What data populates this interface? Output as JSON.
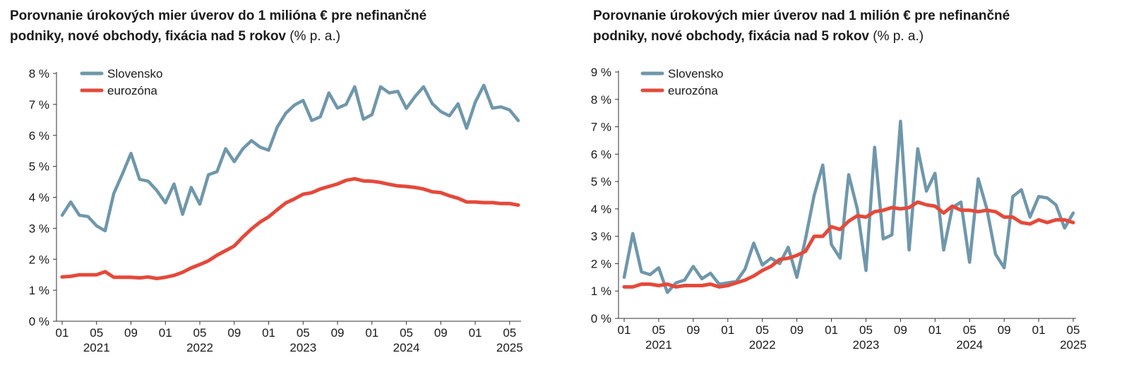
{
  "colors": {
    "slovensko": "#6f97ab",
    "eurozona": "#e5493a",
    "axis": "#333333"
  },
  "chart_data": [
    {
      "type": "line",
      "title": "Porovnanie úrokových mier úverov do 1 milióna € pre nefinančné podniky, nové obchody, fixácia nad 5 rokov",
      "title_line1": "Porovnanie úrokových mier úverov do 1 milióna € pre nefinančné",
      "title_line2": "podniky, nové obchody, fixácia nad 5 rokov",
      "unit": "(% p. a.)",
      "ylim": [
        0,
        8
      ],
      "y_ticks": [
        "0 %",
        "1 %",
        "2 %",
        "3 %",
        "4 %",
        "5 %",
        "6 %",
        "7 %",
        "8 %"
      ],
      "x_month_ticks": [
        {
          "i": 0,
          "label": "01"
        },
        {
          "i": 4,
          "label": "05"
        },
        {
          "i": 8,
          "label": "09"
        },
        {
          "i": 12,
          "label": "01"
        },
        {
          "i": 16,
          "label": "05"
        },
        {
          "i": 20,
          "label": "09"
        },
        {
          "i": 24,
          "label": "01"
        },
        {
          "i": 28,
          "label": "05"
        },
        {
          "i": 32,
          "label": "09"
        },
        {
          "i": 36,
          "label": "01"
        },
        {
          "i": 40,
          "label": "05"
        },
        {
          "i": 44,
          "label": "09"
        },
        {
          "i": 48,
          "label": "01"
        },
        {
          "i": 52,
          "label": "05"
        }
      ],
      "x_year_ticks": [
        {
          "i": 4,
          "label": "2021"
        },
        {
          "i": 16,
          "label": "2022"
        },
        {
          "i": 28,
          "label": "2023"
        },
        {
          "i": 40,
          "label": "2024"
        },
        {
          "i": 52,
          "label": "2025"
        }
      ],
      "n_points": 54,
      "legend": [
        "Slovensko",
        "eurozóna"
      ],
      "series": [
        {
          "name": "Slovensko",
          "values": [
            3.42,
            3.85,
            3.42,
            3.38,
            3.08,
            2.92,
            4.12,
            4.75,
            5.42,
            4.58,
            4.52,
            4.22,
            3.82,
            4.43,
            3.45,
            4.32,
            3.78,
            4.73,
            4.83,
            5.57,
            5.15,
            5.57,
            5.83,
            5.62,
            5.52,
            6.27,
            6.72,
            6.98,
            7.13,
            6.48,
            6.6,
            7.37,
            6.88,
            7.0,
            7.57,
            6.52,
            6.67,
            7.57,
            7.37,
            7.42,
            6.87,
            7.25,
            7.57,
            7.03,
            6.77,
            6.63,
            7.02,
            6.23,
            7.07,
            7.62,
            6.88,
            6.92,
            6.82,
            6.48
          ]
        },
        {
          "name": "eurozóna",
          "values": [
            1.43,
            1.45,
            1.5,
            1.5,
            1.5,
            1.6,
            1.42,
            1.42,
            1.42,
            1.4,
            1.43,
            1.38,
            1.42,
            1.48,
            1.58,
            1.72,
            1.83,
            1.95,
            2.13,
            2.28,
            2.43,
            2.72,
            2.98,
            3.2,
            3.37,
            3.6,
            3.82,
            3.95,
            4.1,
            4.15,
            4.27,
            4.35,
            4.43,
            4.55,
            4.6,
            4.53,
            4.52,
            4.48,
            4.42,
            4.37,
            4.35,
            4.32,
            4.27,
            4.18,
            4.15,
            4.05,
            3.97,
            3.85,
            3.85,
            3.83,
            3.83,
            3.8,
            3.8,
            3.75
          ]
        }
      ]
    },
    {
      "type": "line",
      "title": "Porovnanie úrokových mier úverov nad 1 milión € pre nefinančné podniky, nové obchody, fixácia nad 5 rokov",
      "title_line1": "Porovnanie úrokových mier úverov nad 1 milión € pre nefinančné",
      "title_line2": "podniky, nové obchody, fixácia nad 5 rokov",
      "unit": "(% p. a.)",
      "ylim": [
        0,
        9
      ],
      "y_ticks": [
        "0 %",
        "1 %",
        "2 %",
        "3 %",
        "4 %",
        "5 %",
        "6 %",
        "7 %",
        "8 %",
        "9 %"
      ],
      "x_month_ticks": [
        {
          "i": 0,
          "label": "01"
        },
        {
          "i": 4,
          "label": "05"
        },
        {
          "i": 8,
          "label": "09"
        },
        {
          "i": 12,
          "label": "01"
        },
        {
          "i": 16,
          "label": "05"
        },
        {
          "i": 20,
          "label": "09"
        },
        {
          "i": 24,
          "label": "01"
        },
        {
          "i": 28,
          "label": "05"
        },
        {
          "i": 32,
          "label": "09"
        },
        {
          "i": 36,
          "label": "01"
        },
        {
          "i": 40,
          "label": "05"
        },
        {
          "i": 44,
          "label": "09"
        },
        {
          "i": 48,
          "label": "01"
        },
        {
          "i": 52,
          "label": "05"
        }
      ],
      "x_year_ticks": [
        {
          "i": 4,
          "label": "2021"
        },
        {
          "i": 16,
          "label": "2022"
        },
        {
          "i": 28,
          "label": "2023"
        },
        {
          "i": 40,
          "label": "2024"
        },
        {
          "i": 52,
          "label": "2025"
        }
      ],
      "n_points": 53,
      "legend": [
        "Slovensko",
        "eurozóna"
      ],
      "series": [
        {
          "name": "Slovensko",
          "values": [
            1.5,
            3.1,
            1.7,
            1.6,
            1.85,
            0.95,
            1.3,
            1.4,
            1.9,
            1.45,
            1.65,
            1.25,
            1.3,
            1.35,
            1.8,
            2.75,
            1.95,
            2.2,
            2.0,
            2.6,
            1.5,
            2.9,
            4.5,
            5.6,
            2.7,
            2.2,
            5.25,
            4.0,
            1.75,
            6.25,
            2.9,
            3.05,
            7.2,
            2.5,
            6.2,
            4.65,
            5.3,
            2.5,
            4.05,
            4.25,
            2.05,
            5.1,
            4.0,
            2.35,
            1.85,
            4.45,
            4.7,
            3.7,
            4.45,
            4.4,
            4.15,
            3.3,
            3.85
          ]
        },
        {
          "name": "eurozóna",
          "values": [
            1.15,
            1.15,
            1.25,
            1.25,
            1.2,
            1.25,
            1.15,
            1.2,
            1.2,
            1.2,
            1.25,
            1.15,
            1.2,
            1.3,
            1.4,
            1.55,
            1.75,
            1.9,
            2.15,
            2.2,
            2.3,
            2.45,
            3.0,
            3.0,
            3.35,
            3.25,
            3.55,
            3.75,
            3.7,
            3.9,
            3.95,
            4.05,
            4.0,
            4.05,
            4.25,
            4.15,
            4.1,
            3.85,
            4.1,
            3.95,
            3.95,
            3.9,
            3.95,
            3.9,
            3.7,
            3.7,
            3.5,
            3.45,
            3.6,
            3.5,
            3.6,
            3.6,
            3.5
          ]
        }
      ]
    }
  ]
}
